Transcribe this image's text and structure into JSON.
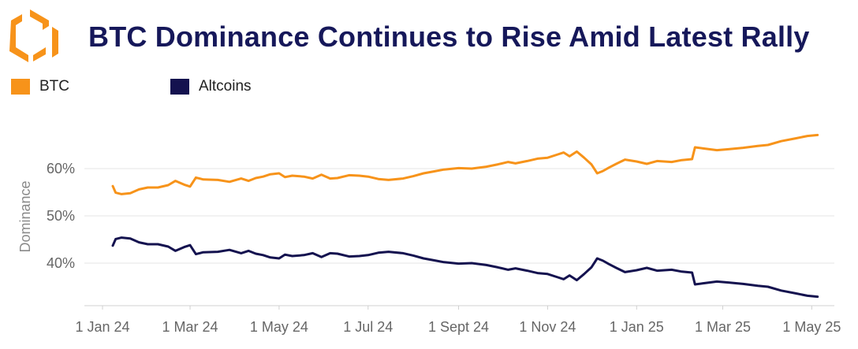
{
  "header": {
    "title": "BTC Dominance Continues to Rise Amid Latest Rally",
    "logo_icon": "orange-hexagon-logo-icon"
  },
  "colors": {
    "btc": "#f7931a",
    "altcoins": "#14124f",
    "title": "#16185a",
    "grid": "#e6e6e6"
  },
  "chart_data": {
    "type": "line",
    "title": "BTC Dominance Continues to Rise Amid Latest Rally",
    "ylabel": "Dominance",
    "xlabel": "",
    "legend_position": "top-left",
    "grid": true,
    "x_tick_labels": [
      "1 Jan 24",
      "1 Mar 24",
      "1 May 24",
      "1 Jul 24",
      "1 Sept 24",
      "1 Nov 24",
      "1 Jan 25",
      "1 Mar 25",
      "1 May 25"
    ],
    "y_tick_labels": [
      "40%",
      "50%",
      "60%"
    ],
    "y_ticks": [
      40,
      50,
      60
    ],
    "ylim": [
      31,
      72
    ],
    "xlim": [
      "2024-01-01",
      "2025-05-10"
    ],
    "series": [
      {
        "name": "BTC",
        "color": "#f7931a",
        "points": [
          [
            "2024-01-08",
            56.3
          ],
          [
            "2024-01-10",
            54.9
          ],
          [
            "2024-01-14",
            54.6
          ],
          [
            "2024-01-20",
            54.8
          ],
          [
            "2024-01-26",
            55.6
          ],
          [
            "2024-02-01",
            56.0
          ],
          [
            "2024-02-08",
            56.0
          ],
          [
            "2024-02-15",
            56.5
          ],
          [
            "2024-02-20",
            57.4
          ],
          [
            "2024-02-26",
            56.6
          ],
          [
            "2024-03-01",
            56.2
          ],
          [
            "2024-03-05",
            58.1
          ],
          [
            "2024-03-10",
            57.7
          ],
          [
            "2024-03-20",
            57.6
          ],
          [
            "2024-03-28",
            57.2
          ],
          [
            "2024-04-05",
            57.9
          ],
          [
            "2024-04-10",
            57.4
          ],
          [
            "2024-04-15",
            58.0
          ],
          [
            "2024-04-20",
            58.3
          ],
          [
            "2024-04-25",
            58.8
          ],
          [
            "2024-05-01",
            59.0
          ],
          [
            "2024-05-05",
            58.2
          ],
          [
            "2024-05-10",
            58.5
          ],
          [
            "2024-05-18",
            58.3
          ],
          [
            "2024-05-24",
            57.9
          ],
          [
            "2024-05-30",
            58.7
          ],
          [
            "2024-06-05",
            57.9
          ],
          [
            "2024-06-10",
            58.0
          ],
          [
            "2024-06-18",
            58.6
          ],
          [
            "2024-06-25",
            58.5
          ],
          [
            "2024-07-01",
            58.3
          ],
          [
            "2024-07-08",
            57.8
          ],
          [
            "2024-07-15",
            57.6
          ],
          [
            "2024-07-25",
            57.9
          ],
          [
            "2024-08-01",
            58.4
          ],
          [
            "2024-08-08",
            59.0
          ],
          [
            "2024-08-15",
            59.4
          ],
          [
            "2024-08-22",
            59.8
          ],
          [
            "2024-09-01",
            60.1
          ],
          [
            "2024-09-10",
            60.0
          ],
          [
            "2024-09-20",
            60.4
          ],
          [
            "2024-09-28",
            60.9
          ],
          [
            "2024-10-05",
            61.4
          ],
          [
            "2024-10-10",
            61.1
          ],
          [
            "2024-10-18",
            61.6
          ],
          [
            "2024-10-25",
            62.1
          ],
          [
            "2024-11-01",
            62.3
          ],
          [
            "2024-11-08",
            63.0
          ],
          [
            "2024-11-12",
            63.4
          ],
          [
            "2024-11-16",
            62.6
          ],
          [
            "2024-11-21",
            63.6
          ],
          [
            "2024-11-26",
            62.3
          ],
          [
            "2024-12-01",
            60.9
          ],
          [
            "2024-12-05",
            59.0
          ],
          [
            "2024-12-09",
            59.5
          ],
          [
            "2024-12-13",
            60.2
          ],
          [
            "2024-12-18",
            61.0
          ],
          [
            "2024-12-24",
            61.9
          ],
          [
            "2025-01-01",
            61.5
          ],
          [
            "2025-01-08",
            61.0
          ],
          [
            "2025-01-15",
            61.6
          ],
          [
            "2025-01-25",
            61.4
          ],
          [
            "2025-02-01",
            61.8
          ],
          [
            "2025-02-08",
            62.0
          ],
          [
            "2025-02-10",
            64.5
          ],
          [
            "2025-02-15",
            64.3
          ],
          [
            "2025-02-25",
            63.9
          ],
          [
            "2025-03-05",
            64.1
          ],
          [
            "2025-03-15",
            64.4
          ],
          [
            "2025-03-25",
            64.8
          ],
          [
            "2025-04-01",
            65.0
          ],
          [
            "2025-04-10",
            65.8
          ],
          [
            "2025-04-20",
            66.4
          ],
          [
            "2025-04-28",
            66.9
          ],
          [
            "2025-05-05",
            67.1
          ]
        ]
      },
      {
        "name": "Altcoins",
        "color": "#14124f",
        "points": [
          [
            "2024-01-08",
            43.7
          ],
          [
            "2024-01-10",
            45.1
          ],
          [
            "2024-01-14",
            45.4
          ],
          [
            "2024-01-20",
            45.2
          ],
          [
            "2024-01-26",
            44.4
          ],
          [
            "2024-02-01",
            44.0
          ],
          [
            "2024-02-08",
            44.0
          ],
          [
            "2024-02-15",
            43.5
          ],
          [
            "2024-02-20",
            42.6
          ],
          [
            "2024-02-26",
            43.4
          ],
          [
            "2024-03-01",
            43.8
          ],
          [
            "2024-03-05",
            41.9
          ],
          [
            "2024-03-10",
            42.3
          ],
          [
            "2024-03-20",
            42.4
          ],
          [
            "2024-03-28",
            42.8
          ],
          [
            "2024-04-05",
            42.1
          ],
          [
            "2024-04-10",
            42.6
          ],
          [
            "2024-04-15",
            42.0
          ],
          [
            "2024-04-20",
            41.7
          ],
          [
            "2024-04-25",
            41.2
          ],
          [
            "2024-05-01",
            41.0
          ],
          [
            "2024-05-05",
            41.8
          ],
          [
            "2024-05-10",
            41.5
          ],
          [
            "2024-05-18",
            41.7
          ],
          [
            "2024-05-24",
            42.1
          ],
          [
            "2024-05-30",
            41.3
          ],
          [
            "2024-06-05",
            42.1
          ],
          [
            "2024-06-10",
            42.0
          ],
          [
            "2024-06-18",
            41.4
          ],
          [
            "2024-06-25",
            41.5
          ],
          [
            "2024-07-01",
            41.7
          ],
          [
            "2024-07-08",
            42.2
          ],
          [
            "2024-07-15",
            42.4
          ],
          [
            "2024-07-25",
            42.1
          ],
          [
            "2024-08-01",
            41.6
          ],
          [
            "2024-08-08",
            41.0
          ],
          [
            "2024-08-15",
            40.6
          ],
          [
            "2024-08-22",
            40.2
          ],
          [
            "2024-09-01",
            39.9
          ],
          [
            "2024-09-10",
            40.0
          ],
          [
            "2024-09-20",
            39.6
          ],
          [
            "2024-09-28",
            39.1
          ],
          [
            "2024-10-05",
            38.6
          ],
          [
            "2024-10-10",
            38.9
          ],
          [
            "2024-10-18",
            38.4
          ],
          [
            "2024-10-25",
            37.9
          ],
          [
            "2024-11-01",
            37.7
          ],
          [
            "2024-11-08",
            37.0
          ],
          [
            "2024-11-12",
            36.6
          ],
          [
            "2024-11-16",
            37.4
          ],
          [
            "2024-11-21",
            36.4
          ],
          [
            "2024-11-26",
            37.7
          ],
          [
            "2024-12-01",
            39.1
          ],
          [
            "2024-12-05",
            41.0
          ],
          [
            "2024-12-09",
            40.5
          ],
          [
            "2024-12-13",
            39.8
          ],
          [
            "2024-12-18",
            39.0
          ],
          [
            "2024-12-24",
            38.1
          ],
          [
            "2025-01-01",
            38.5
          ],
          [
            "2025-01-08",
            39.0
          ],
          [
            "2025-01-15",
            38.4
          ],
          [
            "2025-01-25",
            38.6
          ],
          [
            "2025-02-01",
            38.2
          ],
          [
            "2025-02-08",
            38.0
          ],
          [
            "2025-02-10",
            35.5
          ],
          [
            "2025-02-15",
            35.7
          ],
          [
            "2025-02-25",
            36.1
          ],
          [
            "2025-03-05",
            35.9
          ],
          [
            "2025-03-15",
            35.6
          ],
          [
            "2025-03-25",
            35.2
          ],
          [
            "2025-04-01",
            35.0
          ],
          [
            "2025-04-10",
            34.2
          ],
          [
            "2025-04-20",
            33.6
          ],
          [
            "2025-04-28",
            33.1
          ],
          [
            "2025-05-05",
            32.9
          ]
        ]
      }
    ]
  }
}
